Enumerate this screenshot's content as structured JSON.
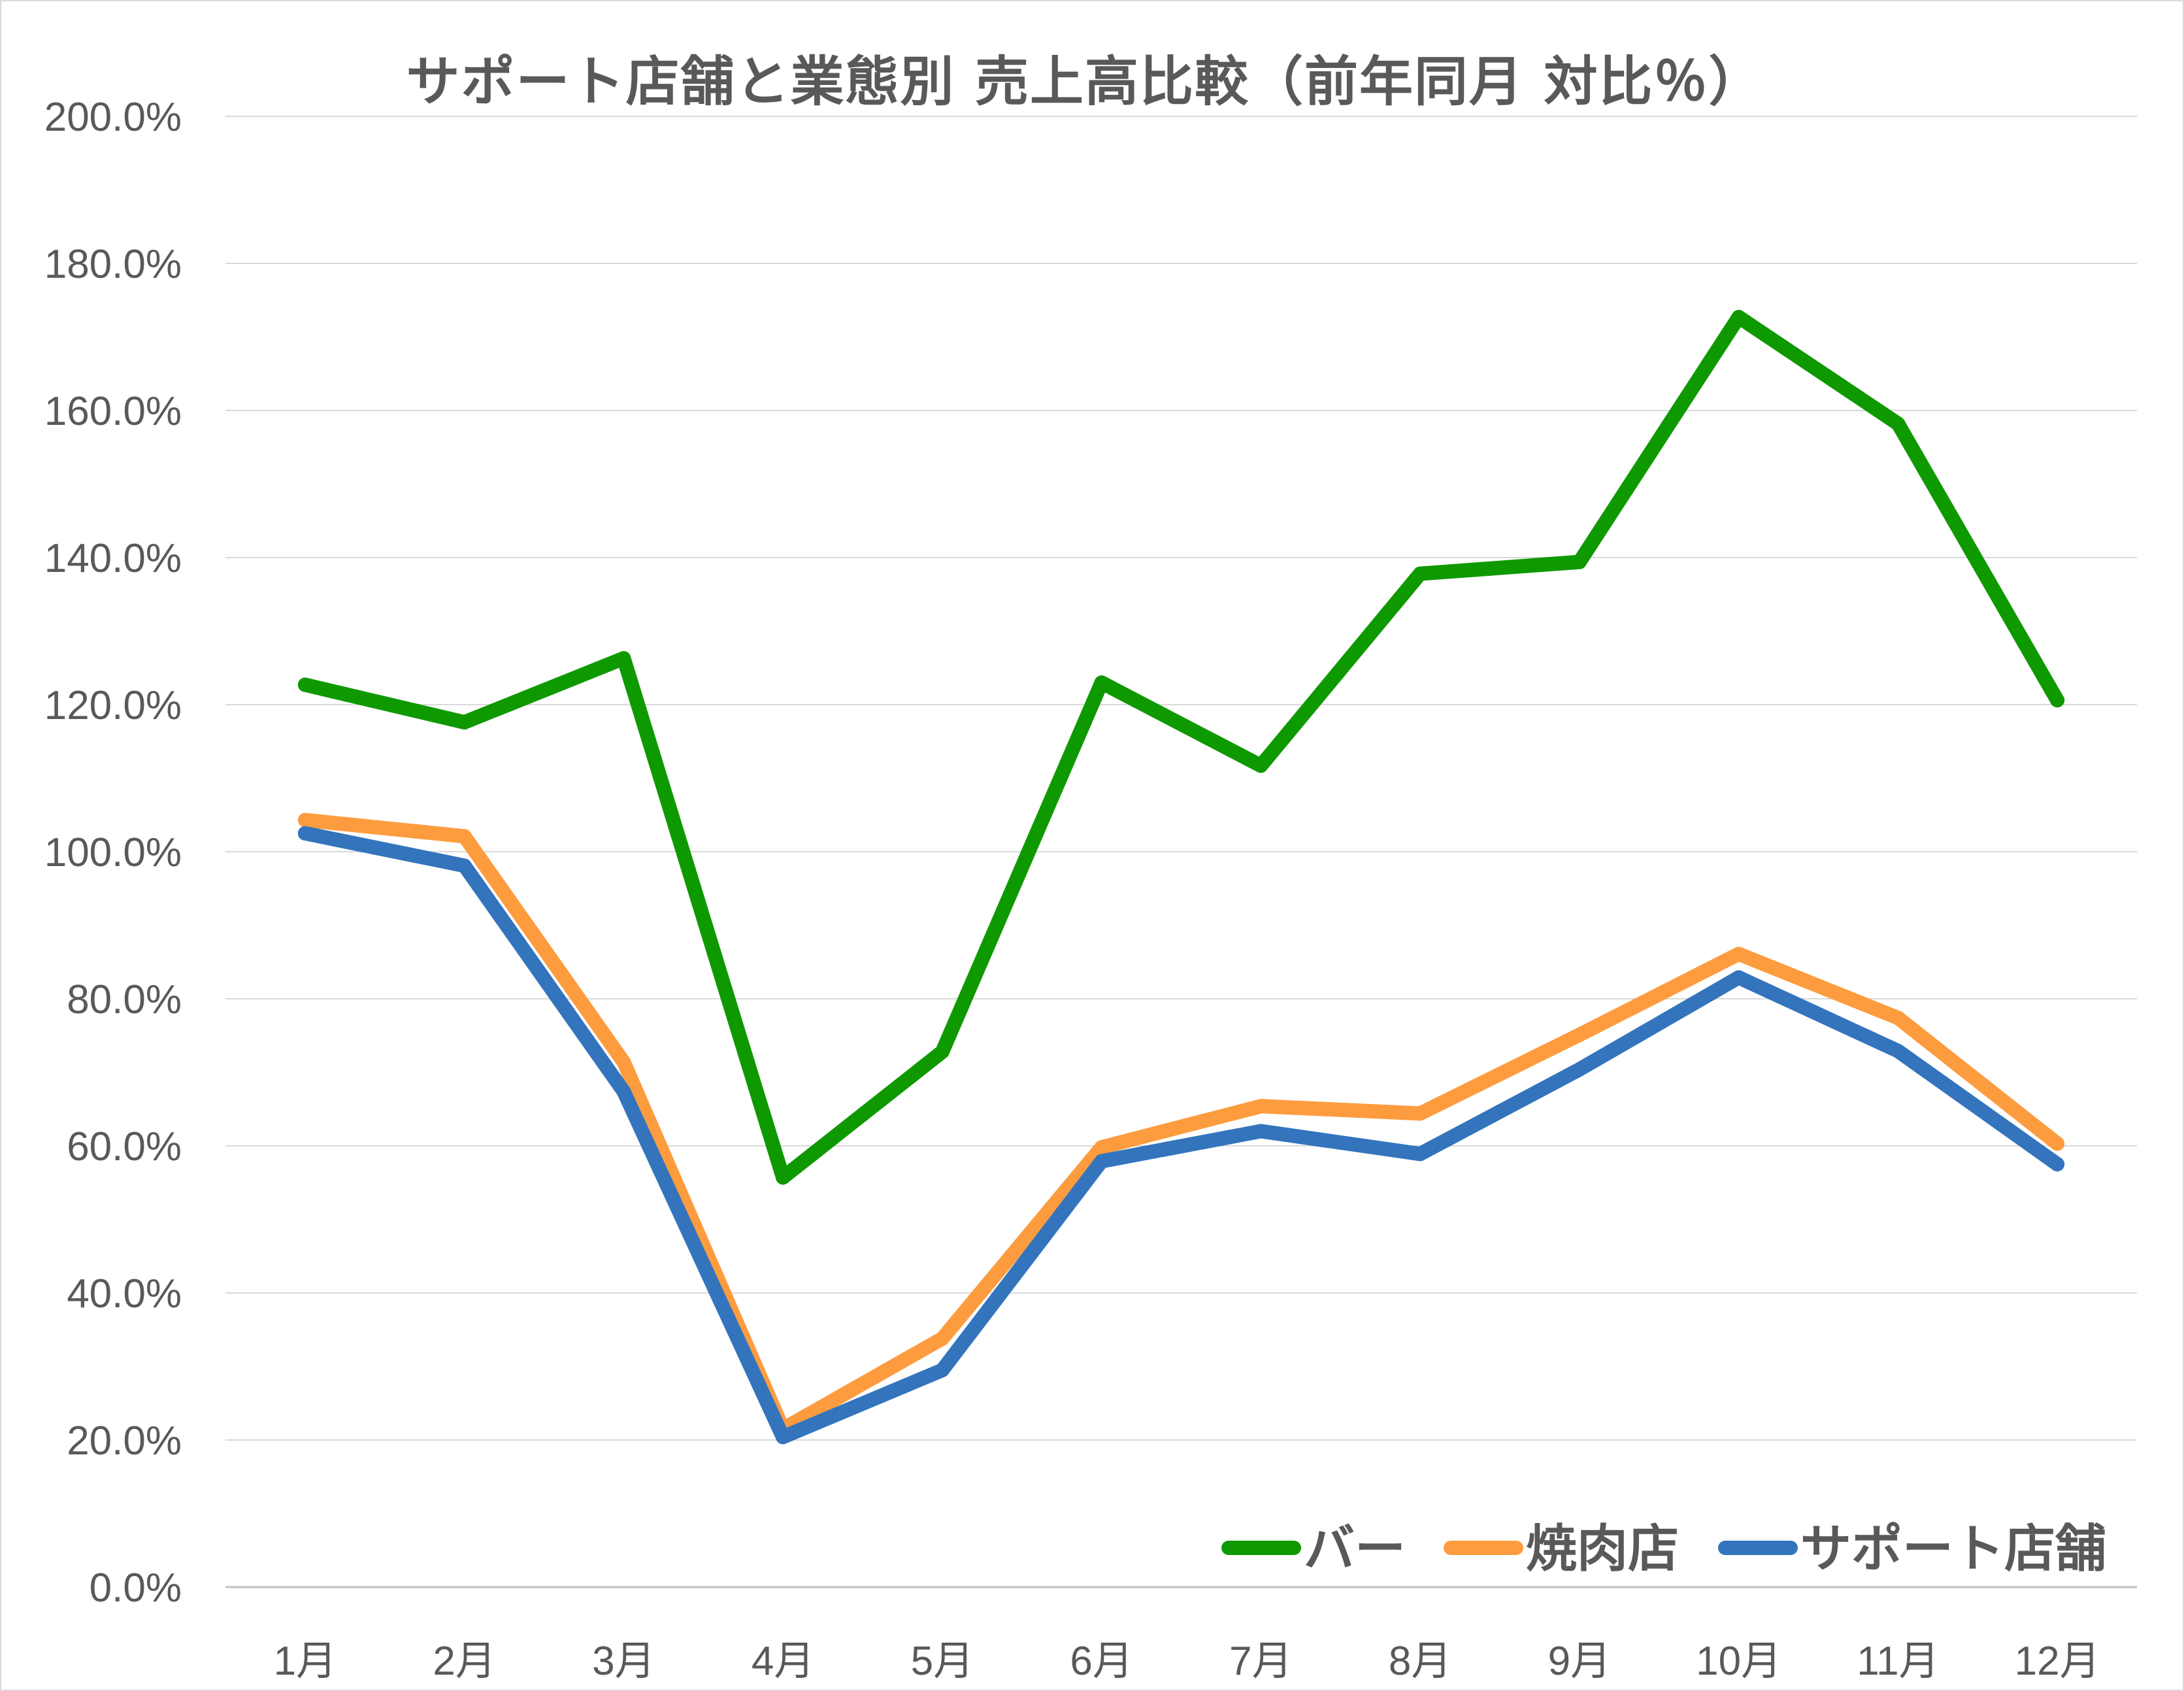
{
  "chart_data": {
    "type": "line",
    "title": "サポート店舗と業態別 売上高比較（前年同月 対比％）",
    "xlabel": "",
    "ylabel": "",
    "categories": [
      "1月",
      "2月",
      "3月",
      "4月",
      "5月",
      "6月",
      "7月",
      "8月",
      "9月",
      "10月",
      "11月",
      "12月"
    ],
    "y_ticks": [
      "0.0%",
      "20.0%",
      "40.0%",
      "60.0%",
      "80.0%",
      "100.0%",
      "120.0%",
      "140.0%",
      "160.0%",
      "180.0%",
      "200.0%"
    ],
    "ylim": [
      0,
      200
    ],
    "grid": true,
    "legend_position": "bottom-right",
    "series": [
      {
        "name": "バー",
        "color": "#0f9900",
        "values": [
          122.7,
          117.6,
          126.3,
          55.7,
          72.8,
          123.0,
          111.7,
          137.8,
          139.4,
          172.7,
          158.2,
          120.6
        ]
      },
      {
        "name": "焼肉店",
        "color": "#fd9c3f",
        "values": [
          104.3,
          102.1,
          71.4,
          21.5,
          33.8,
          59.8,
          65.4,
          64.4,
          75.1,
          86.1,
          77.4,
          60.3
        ]
      },
      {
        "name": "サポート店舗",
        "color": "#3374bd",
        "values": [
          102.5,
          98.1,
          67.4,
          20.4,
          29.5,
          57.9,
          62.0,
          58.9,
          70.4,
          82.9,
          72.9,
          57.5
        ]
      }
    ]
  }
}
